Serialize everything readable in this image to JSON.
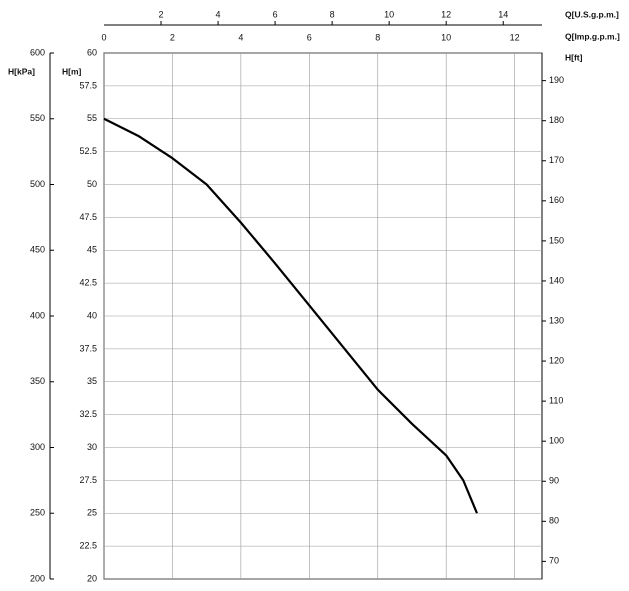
{
  "chart_data": {
    "type": "line",
    "xlabel": "Q[Imp.g.p.m.]",
    "x2label": "Q[U.S.g.p.m.]",
    "ylabel": "H[m]",
    "y2label": "H[ft]",
    "y3label": "H[kPa]",
    "xlim": [
      0,
      12.8
    ],
    "xticks": [
      0,
      2,
      4,
      6,
      8,
      10,
      12
    ],
    "x2lim": [
      0,
      15.36
    ],
    "x2ticks": [
      2,
      4,
      6,
      8,
      10,
      12,
      14
    ],
    "ylim": [
      20,
      60
    ],
    "yticks": [
      20,
      22.5,
      25,
      27.5,
      30,
      32.5,
      35,
      37.5,
      40,
      42.5,
      45,
      47.5,
      50,
      52.5,
      55,
      57.5,
      60
    ],
    "y2lim": [
      65.6,
      196.9
    ],
    "y2ticks": [
      70,
      80,
      90,
      100,
      110,
      120,
      130,
      140,
      150,
      160,
      170,
      180,
      190
    ],
    "y3lim": [
      200,
      600
    ],
    "y3ticks": [
      200,
      250,
      300,
      350,
      400,
      450,
      500,
      550,
      600
    ],
    "grid": true,
    "x": [
      0,
      1,
      2,
      3,
      4,
      5,
      6,
      7,
      8,
      9,
      10,
      10.5,
      10.9
    ],
    "series": [
      {
        "color": "#000000",
        "values": [
          55,
          53.7,
          52,
          50,
          47.1,
          44,
          40.8,
          37.6,
          34.4,
          31.8,
          29.4,
          27.5,
          25
        ]
      }
    ]
  }
}
